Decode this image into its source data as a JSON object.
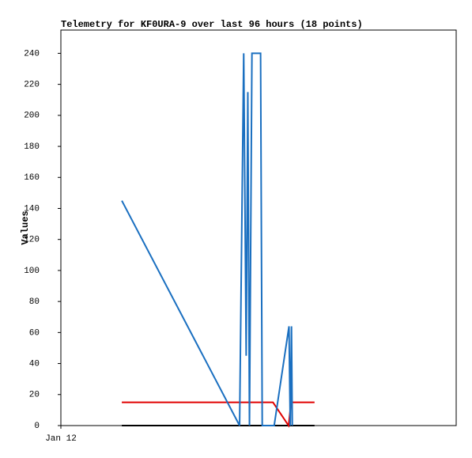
{
  "chart_data": {
    "type": "line",
    "title": "Telemetry for KF0URA-9 over last 96 hours (18 points)",
    "y_label": "Values",
    "xlim": [
      0,
      96
    ],
    "xticks": [
      {
        "value": 0,
        "label": "Jan 12"
      }
    ],
    "ylim": [
      0,
      255
    ],
    "yticks": [
      0,
      20,
      40,
      60,
      80,
      100,
      120,
      140,
      160,
      180,
      200,
      220,
      240
    ],
    "series": [
      {
        "color": "#000000",
        "x": [
          14.8,
          61.6
        ],
        "values": [
          0,
          0
        ]
      },
      {
        "color": "#e00000",
        "x": [
          14.8,
          51.5,
          55.3,
          55.9,
          61.6
        ],
        "values": [
          15,
          15,
          0,
          15,
          15
        ]
      },
      {
        "color": "#1a6fc0",
        "x": [
          14.8,
          43.4,
          44.4,
          45.0,
          45.4,
          45.8,
          46.4,
          48.5,
          48.9,
          51.8,
          55.4,
          55.7,
          56.0,
          56.2
        ],
        "values": [
          145,
          0,
          240,
          45,
          215,
          0,
          240,
          240,
          0,
          0,
          64,
          0,
          64,
          0
        ]
      }
    ]
  }
}
